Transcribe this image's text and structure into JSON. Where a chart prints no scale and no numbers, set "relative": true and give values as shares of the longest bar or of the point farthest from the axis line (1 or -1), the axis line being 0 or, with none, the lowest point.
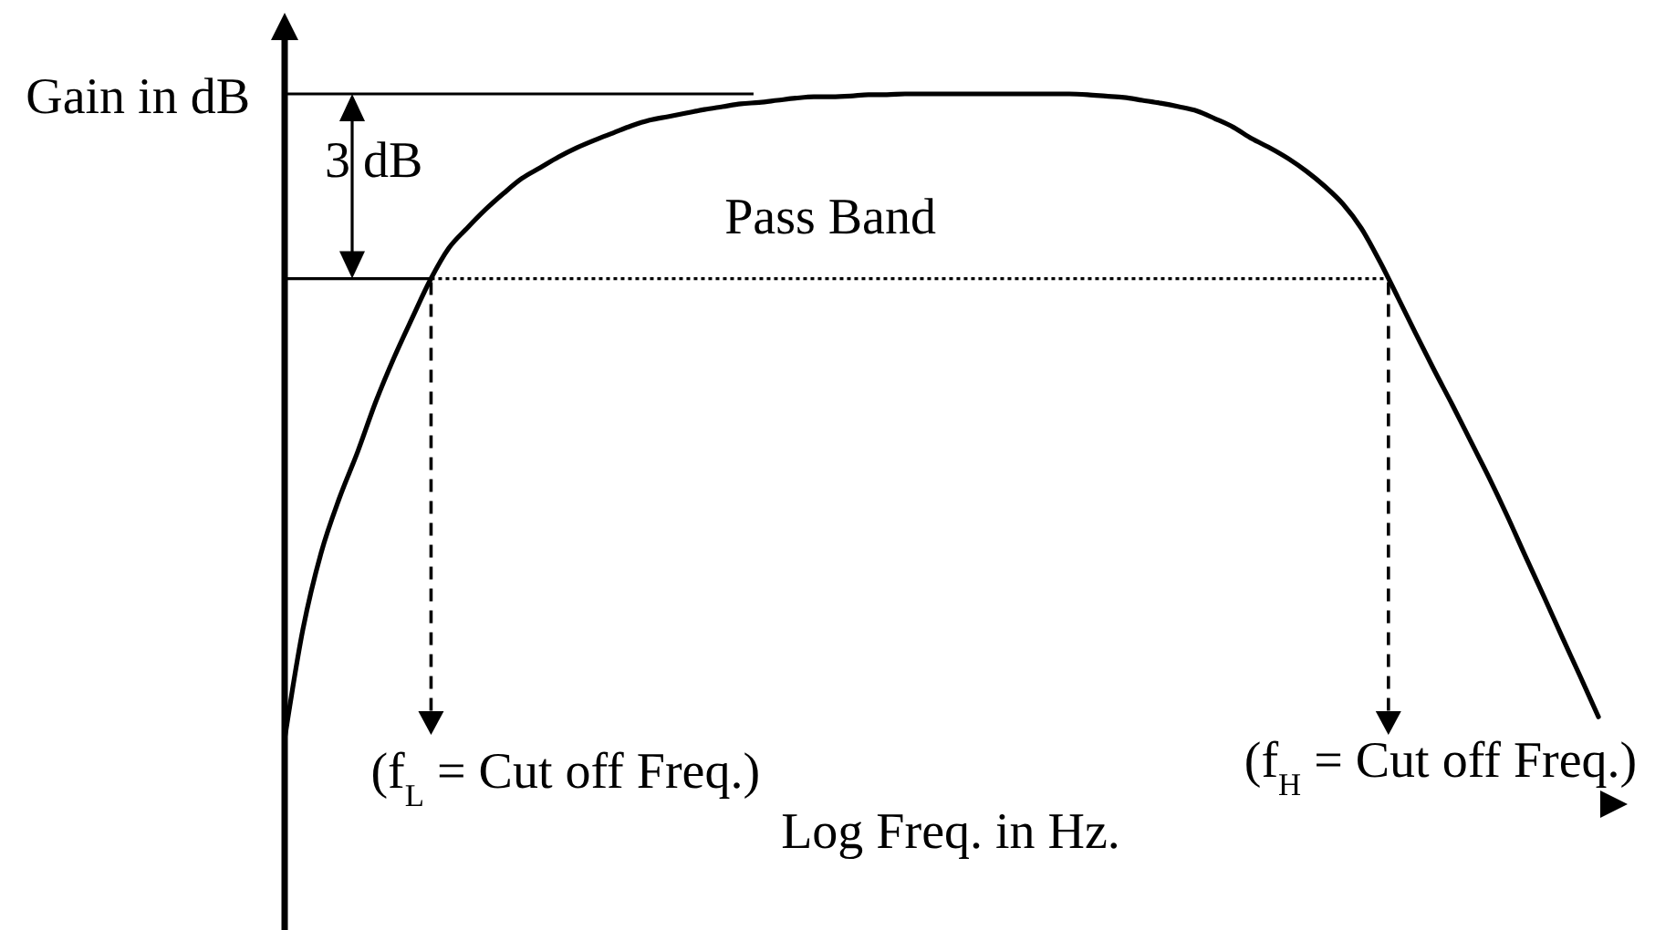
{
  "chart_data": {
    "type": "line",
    "relative": true,
    "ylabel": "Gain in dB",
    "xlabel": "Log Freq. in Hz.",
    "categories": [
      null,
      null,
      null,
      null,
      null,
      null,
      null,
      null,
      null,
      null,
      null,
      null,
      null,
      null,
      null,
      null,
      null,
      null,
      null,
      null,
      null,
      null,
      null,
      null,
      null,
      null,
      null,
      null,
      null,
      null,
      null,
      null,
      null,
      null,
      null,
      null,
      null,
      null,
      null,
      null,
      null,
      null,
      null,
      null,
      null,
      null,
      null,
      null,
      null,
      null,
      null,
      null,
      null,
      null,
      null,
      null,
      null,
      null,
      null,
      null,
      null,
      null,
      null,
      null,
      null,
      null,
      null,
      null,
      null,
      null,
      null,
      null,
      null,
      null
    ],
    "series": [
      {
        "color": "#000000",
        "values": [
          0.092,
          0.246,
          0.354,
          0.431,
          0.496,
          0.567,
          0.629,
          0.685,
          0.739,
          0.783,
          0.811,
          0.837,
          0.86,
          0.881,
          0.896,
          0.911,
          0.924,
          0.935,
          0.945,
          0.955,
          0.963,
          0.968,
          0.973,
          0.978,
          0.982,
          0.986,
          0.988,
          0.991,
          0.994,
          0.996,
          0.996,
          0.997,
          0.999,
          0.999,
          1,
          1,
          1,
          1,
          1,
          1,
          1,
          1,
          1,
          1,
          0.999,
          0.997,
          0.995,
          0.991,
          0.987,
          0.982,
          0.976,
          0.965,
          0.953,
          0.937,
          0.924,
          0.909,
          0.891,
          0.87,
          0.845,
          0.811,
          0.765,
          0.714,
          0.662,
          0.611,
          0.562,
          0.511,
          0.46,
          0.406,
          0.349,
          0.293,
          0.236,
          0.18,
          0.123,
          null
        ]
      }
    ],
    "ref_lines": [
      {
        "axis": "y",
        "value": 1,
        "color": "#000000"
      },
      {
        "axis": "y",
        "value": 0.74,
        "color": "#000000",
        "line_style": "dotted"
      }
    ],
    "annotations": [
      "3 dB",
      "Pass Band",
      "(f$_{L}$ = Cut off Freq.)",
      "(f$_{H}$ = Cut off Freq.)"
    ]
  }
}
